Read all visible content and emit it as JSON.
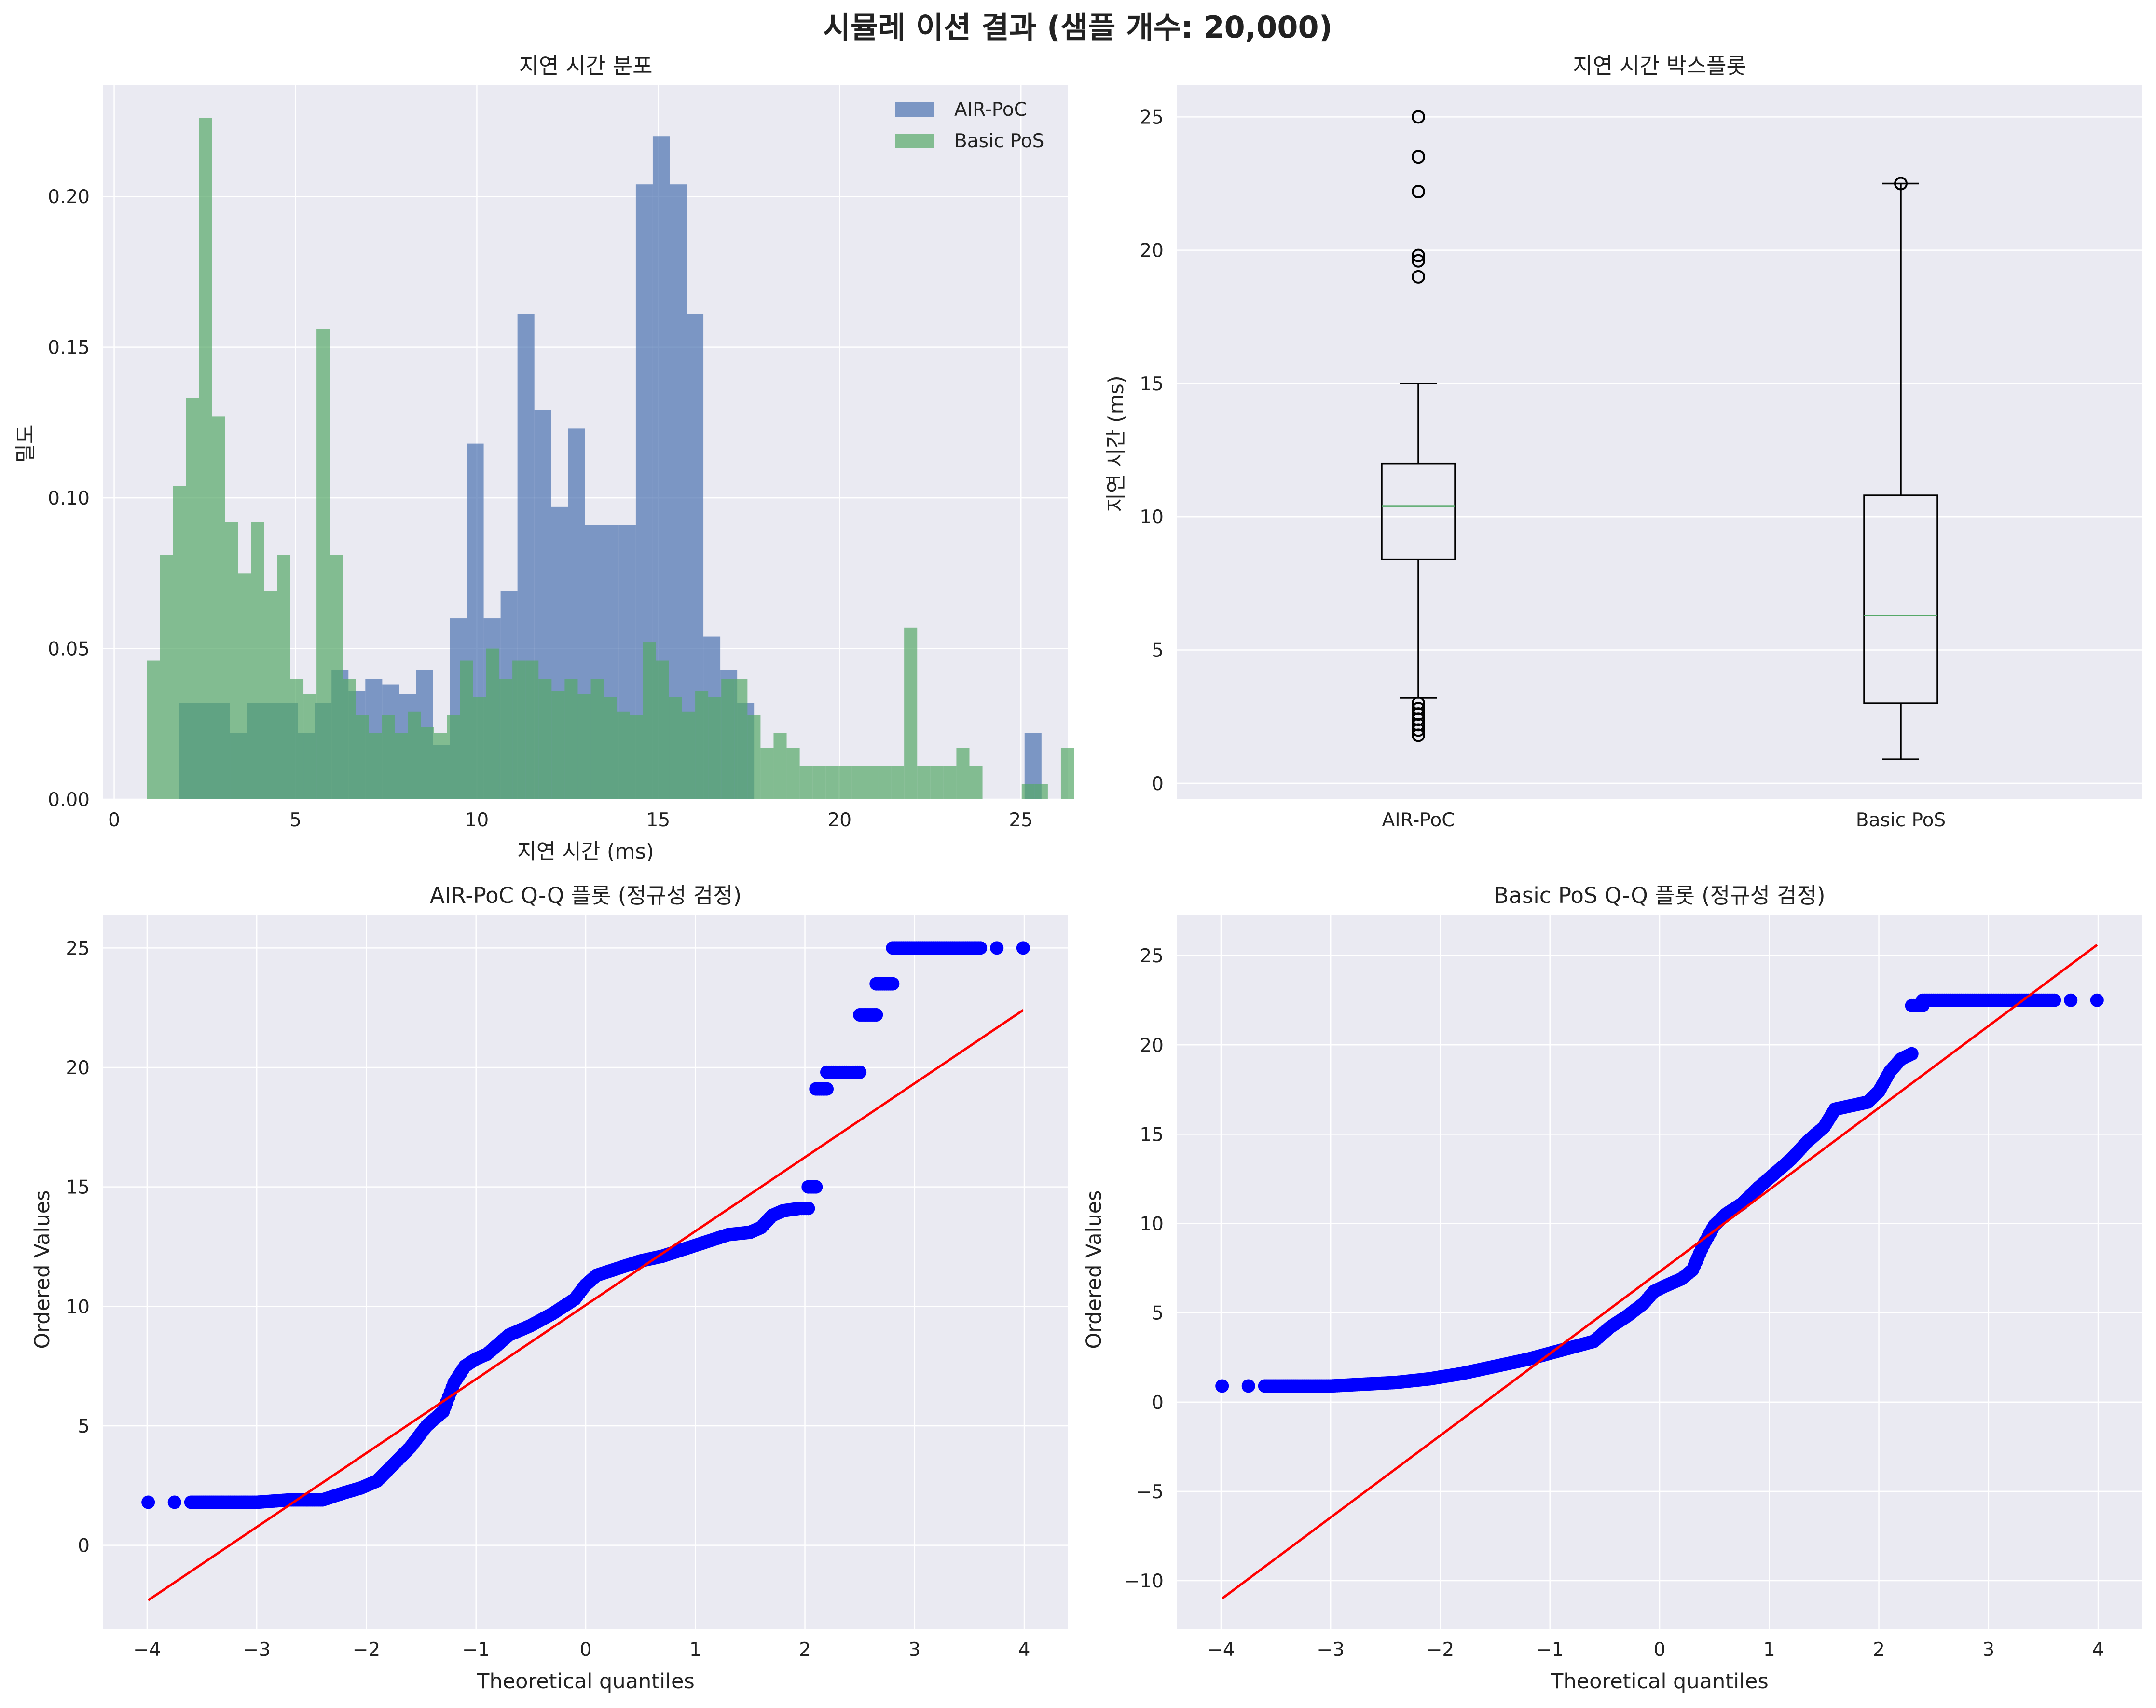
{
  "suptitle": "시뮬레 이션 결과 (샘플 개수: 20,000)",
  "colors": {
    "panel_bg": "#eaeaf2",
    "grid": "#ffffff",
    "air_poc": "#4c72b0",
    "basic_pos": "#55a868",
    "box_line": "#000000",
    "median": "#55a868",
    "qq_points": "#0000ff",
    "qq_line": "#ff0000"
  },
  "chart_data": [
    {
      "type": "histogram",
      "title": "지연 시간 분포",
      "xlabel": "지연 시간 (ms)",
      "ylabel": "밀도",
      "xlim": [
        -0.3,
        26.3
      ],
      "ylim": [
        0,
        0.237
      ],
      "xticks": [
        0,
        5,
        10,
        15,
        20,
        25
      ],
      "yticks": [
        0.0,
        0.05,
        0.1,
        0.15,
        0.2
      ],
      "xtick_labels": [
        "0",
        "5",
        "10",
        "15",
        "20",
        "25"
      ],
      "ytick_labels": [
        "0.00",
        "0.05",
        "0.10",
        "0.15",
        "0.20"
      ],
      "legend_position": "upper right",
      "series": [
        {
          "name": "AIR-PoC",
          "bin_start": 1.8,
          "bin_width": 0.466,
          "densities": [
            0.032,
            0.032,
            0.032,
            0.022,
            0.032,
            0.032,
            0.032,
            0.022,
            0.032,
            0.043,
            0.036,
            0.04,
            0.038,
            0.035,
            0.043,
            0.018,
            0.06,
            0.118,
            0.06,
            0.069,
            0.161,
            0.129,
            0.097,
            0.123,
            0.091,
            0.091,
            0.091,
            0.204,
            0.22,
            0.204,
            0.161,
            0.054,
            0.043,
            0.032,
            0,
            0,
            0,
            0,
            0,
            0,
            0,
            0,
            0,
            0,
            0,
            0,
            0,
            0,
            0,
            0,
            0.022,
            0,
            0,
            0,
            0,
            0,
            0,
            0,
            0,
            0,
            0,
            0,
            0,
            0,
            0,
            0,
            0,
            0,
            0,
            0.005,
            0,
            0.005,
            0,
            0,
            0.005,
            0,
            0,
            0,
            0,
            0,
            0,
            0,
            0,
            0,
            0,
            0.005
          ],
          "bins_note": ""
        },
        {
          "name": "Basic PoS",
          "bin_start": 0.9,
          "bin_width": 0.36,
          "densities": [
            0.046,
            0.081,
            0.104,
            0.133,
            0.226,
            0.127,
            0.092,
            0.075,
            0.092,
            0.069,
            0.081,
            0.04,
            0.035,
            0.156,
            0.081,
            0.04,
            0.028,
            0.022,
            0.028,
            0.022,
            0.029,
            0.024,
            0.022,
            0.028,
            0.046,
            0.034,
            0.05,
            0.04,
            0.046,
            0.046,
            0.04,
            0.036,
            0.04,
            0.035,
            0.04,
            0.034,
            0.029,
            0.028,
            0.052,
            0.046,
            0.034,
            0.029,
            0.036,
            0.034,
            0.04,
            0.04,
            0.028,
            0.017,
            0.022,
            0.017,
            0.011,
            0.011,
            0.011,
            0.011,
            0.011,
            0.011,
            0.011,
            0.011,
            0.057,
            0.011,
            0.011,
            0.011,
            0.017,
            0.011,
            0,
            0,
            0,
            0.005,
            0.005,
            0,
            0.017,
            0,
            0,
            0,
            0,
            0,
            0,
            0,
            0,
            0,
            0.023
          ]
        }
      ]
    },
    {
      "type": "box",
      "title": "지연 시간 박스플롯",
      "ylabel": "지연 시간 (ms)",
      "xlabel": "",
      "ylim": [
        -0.6,
        26.2
      ],
      "yticks": [
        0,
        5,
        10,
        15,
        20,
        25
      ],
      "ytick_labels": [
        "0",
        "5",
        "10",
        "15",
        "20",
        "25"
      ],
      "categories": [
        "AIR-PoC",
        "Basic PoS"
      ],
      "boxes": [
        {
          "name": "AIR-PoC",
          "whisker_low": 3.2,
          "q1": 8.4,
          "median": 10.4,
          "q3": 12.0,
          "whisker_high": 15.0,
          "outliers": [
            25.0,
            23.5,
            22.2,
            19.8,
            19.6,
            19.0,
            3.0,
            2.8,
            2.6,
            2.4,
            2.2,
            2.0,
            1.8
          ]
        },
        {
          "name": "Basic PoS",
          "whisker_low": 0.9,
          "q1": 3.0,
          "median": 6.3,
          "q3": 10.8,
          "whisker_high": 22.5,
          "outliers": [
            22.5
          ]
        }
      ]
    },
    {
      "type": "scatter",
      "title": "AIR-PoC Q-Q 플롯 (정규성 검정)",
      "xlabel": "Theoretical quantiles",
      "ylabel": "Ordered Values",
      "xlim": [
        -4.4,
        4.4
      ],
      "ylim": [
        -3.5,
        26.4
      ],
      "xticks": [
        -4,
        -3,
        -2,
        -1,
        0,
        1,
        2,
        3,
        4
      ],
      "yticks": [
        0,
        5,
        10,
        15,
        20,
        25
      ],
      "xtick_labels": [
        "−4",
        "−3",
        "−2",
        "−1",
        "0",
        "1",
        "2",
        "3",
        "4"
      ],
      "ytick_labels": [
        "0",
        "5",
        "10",
        "15",
        "20",
        "25"
      ],
      "fit_line": {
        "x": [
          -3.99,
          3.99
        ],
        "y": [
          -2.3,
          22.4
        ]
      },
      "curve": {
        "x": [
          -3.99,
          -3.75,
          -3.6,
          -3.3,
          -3.0,
          -2.7,
          -2.4,
          -2.2,
          -2.05,
          -1.9,
          -1.75,
          -1.6,
          -1.45,
          -1.3,
          -1.2,
          -1.1,
          -1.0,
          -0.9,
          -0.7,
          -0.5,
          -0.3,
          -0.1,
          0.0,
          0.1,
          0.3,
          0.5,
          0.7,
          0.9,
          1.1,
          1.3,
          1.5,
          1.6,
          1.7,
          1.8,
          1.95,
          2.03
        ],
        "y": [
          1.8,
          1.8,
          1.8,
          1.8,
          1.8,
          1.9,
          1.9,
          2.2,
          2.4,
          2.7,
          3.4,
          4.1,
          5.0,
          5.6,
          6.8,
          7.5,
          7.8,
          8.0,
          8.8,
          9.2,
          9.7,
          10.3,
          10.9,
          11.3,
          11.6,
          11.9,
          12.1,
          12.4,
          12.7,
          13.0,
          13.1,
          13.3,
          13.8,
          14.0,
          14.1,
          14.1
        ]
      },
      "jumps": [
        {
          "x_from": 2.03,
          "x_to": 2.1,
          "y": 15.0
        },
        {
          "x_from": 2.1,
          "x_to": 2.2,
          "y": 19.1
        },
        {
          "x_from": 2.2,
          "x_to": 2.5,
          "y": 19.8
        },
        {
          "x_from": 2.5,
          "x_to": 2.65,
          "y": 22.2
        },
        {
          "x_from": 2.65,
          "x_to": 2.8,
          "y": 23.5
        },
        {
          "x_from": 2.8,
          "x_to": 3.6,
          "y": 25.0
        }
      ],
      "tail_points": [
        {
          "x": 3.75,
          "y": 25.0
        },
        {
          "x": 3.99,
          "y": 25.0
        }
      ]
    },
    {
      "type": "scatter",
      "title": "Basic PoS Q-Q 플롯 (정규성 검정)",
      "xlabel": "Theoretical quantiles",
      "ylabel": "Ordered Values",
      "xlim": [
        -4.4,
        4.4
      ],
      "ylim": [
        -12.7,
        27.3
      ],
      "xticks": [
        -4,
        -3,
        -2,
        -1,
        0,
        1,
        2,
        3,
        4
      ],
      "yticks": [
        -10,
        -5,
        0,
        5,
        10,
        15,
        20,
        25
      ],
      "xtick_labels": [
        "−4",
        "−3",
        "−2",
        "−1",
        "0",
        "1",
        "2",
        "3",
        "4"
      ],
      "ytick_labels": [
        "−10",
        "−5",
        "0",
        "5",
        "10",
        "15",
        "20",
        "25"
      ],
      "fit_line": {
        "x": [
          -3.99,
          3.99
        ],
        "y": [
          -11.0,
          25.6
        ]
      },
      "curve": {
        "x": [
          -3.99,
          -3.75,
          -3.6,
          -3.3,
          -3.0,
          -2.7,
          -2.4,
          -2.1,
          -1.8,
          -1.5,
          -1.2,
          -0.9,
          -0.6,
          -0.45,
          -0.3,
          -0.15,
          -0.05,
          0.05,
          0.2,
          0.3,
          0.4,
          0.5,
          0.6,
          0.75,
          0.9,
          1.05,
          1.2,
          1.35,
          1.5,
          1.6,
          1.75,
          1.9,
          2.0,
          2.1,
          2.2,
          2.3
        ],
        "y": [
          0.9,
          0.9,
          0.9,
          0.9,
          0.9,
          1.0,
          1.1,
          1.3,
          1.6,
          2.0,
          2.4,
          2.9,
          3.4,
          4.2,
          4.8,
          5.5,
          6.2,
          6.5,
          6.9,
          7.4,
          8.8,
          9.9,
          10.5,
          11.1,
          12.0,
          12.8,
          13.6,
          14.6,
          15.4,
          16.4,
          16.6,
          16.8,
          17.4,
          18.5,
          19.2,
          19.5
        ]
      },
      "jumps": [
        {
          "x_from": 2.3,
          "x_to": 2.4,
          "y": 22.2
        },
        {
          "x_from": 2.4,
          "x_to": 3.6,
          "y": 22.5
        }
      ],
      "tail_points": [
        {
          "x": 3.75,
          "y": 22.5
        },
        {
          "x": 3.99,
          "y": 22.5
        }
      ]
    }
  ]
}
